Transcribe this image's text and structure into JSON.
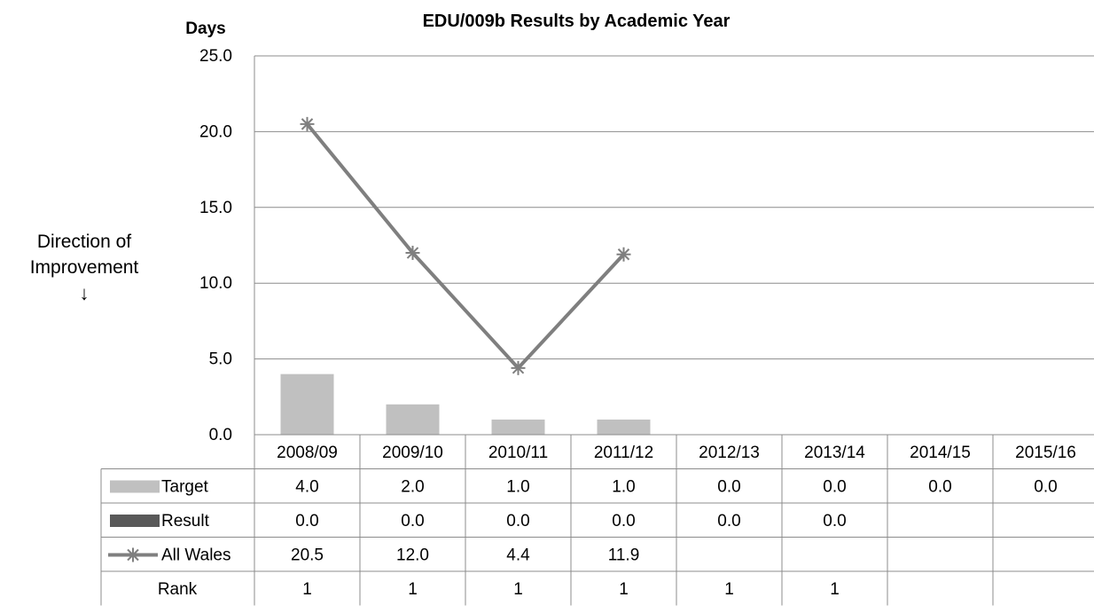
{
  "chart_data": {
    "type": "bar",
    "title": "EDU/009b Results by Academic Year",
    "ylabel": "Days",
    "ylim": [
      0,
      25
    ],
    "yticks": [
      "0.0",
      "5.0",
      "10.0",
      "15.0",
      "20.0",
      "25.0"
    ],
    "categories": [
      "2008/09",
      "2009/10",
      "2010/11",
      "2011/12",
      "2012/13",
      "2013/14",
      "2014/15",
      "2015/16"
    ],
    "grid": true,
    "series": [
      {
        "name": "Target",
        "type": "bar",
        "color": "#c0c0c0",
        "values": [
          4.0,
          2.0,
          1.0,
          1.0,
          0.0,
          0.0,
          0.0,
          0.0
        ]
      },
      {
        "name": "Result",
        "type": "bar",
        "color": "#595959",
        "values": [
          0.0,
          0.0,
          0.0,
          0.0,
          0.0,
          0.0,
          null,
          null
        ]
      },
      {
        "name": "All Wales",
        "type": "line",
        "marker": "asterisk",
        "color": "#7f7f7f",
        "values": [
          20.5,
          12.0,
          4.4,
          11.9,
          null,
          null,
          null,
          null
        ]
      }
    ],
    "table": {
      "rows": [
        {
          "label": "Target",
          "cells": [
            "4.0",
            "2.0",
            "1.0",
            "1.0",
            "0.0",
            "0.0",
            "0.0",
            "0.0"
          ]
        },
        {
          "label": "Result",
          "cells": [
            "0.0",
            "0.0",
            "0.0",
            "0.0",
            "0.0",
            "0.0",
            "",
            ""
          ]
        },
        {
          "label": "All Wales",
          "cells": [
            "20.5",
            "12.0",
            "4.4",
            "11.9",
            "",
            "",
            "",
            ""
          ]
        },
        {
          "label": "Rank",
          "cells": [
            "1",
            "1",
            "1",
            "1",
            "1",
            "1",
            "",
            ""
          ]
        }
      ]
    },
    "annotation": {
      "line1": "Direction of",
      "line2": "Improvement",
      "arrow": "↓"
    }
  }
}
